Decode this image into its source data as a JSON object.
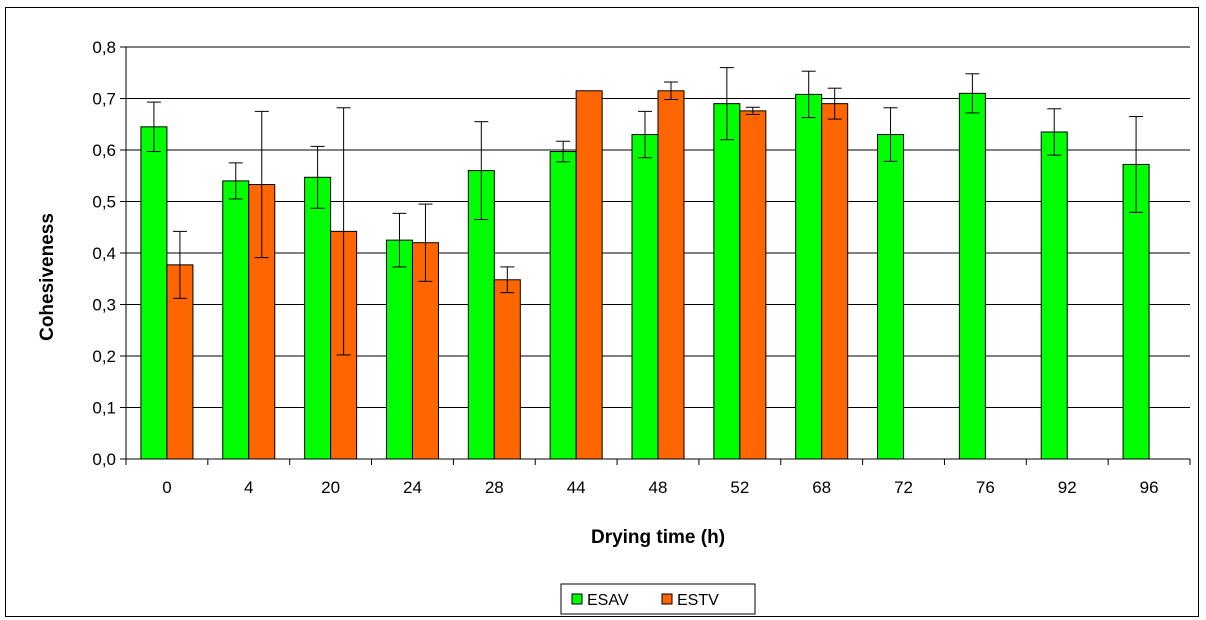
{
  "chart_data": {
    "type": "bar",
    "title": "",
    "xlabel": "Drying time (h)",
    "ylabel": "Cohesiveness",
    "categories": [
      "0",
      "4",
      "20",
      "24",
      "28",
      "44",
      "48",
      "52",
      "68",
      "72",
      "76",
      "92",
      "96"
    ],
    "ylim": [
      0,
      0.8
    ],
    "yticks": [
      0.0,
      0.1,
      0.2,
      0.3,
      0.4,
      0.5,
      0.6,
      0.7,
      0.8
    ],
    "ytick_labels": [
      "0,0",
      "0,1",
      "0,2",
      "0,3",
      "0,4",
      "0,5",
      "0,6",
      "0,7",
      "0,8"
    ],
    "grid": "horizontal",
    "legend_position": "bottom",
    "series": [
      {
        "name": "ESAV",
        "color": "#00ff00",
        "values": [
          0.645,
          0.54,
          0.547,
          0.425,
          0.56,
          0.597,
          0.63,
          0.69,
          0.708,
          0.63,
          0.71,
          0.635,
          0.572
        ],
        "errors": [
          0.048,
          0.035,
          0.06,
          0.052,
          0.095,
          0.02,
          0.045,
          0.07,
          0.045,
          0.052,
          0.038,
          0.045,
          0.093
        ]
      },
      {
        "name": "ESTV",
        "color": "#ff6600",
        "values": [
          0.377,
          0.533,
          0.442,
          0.42,
          0.348,
          0.715,
          0.715,
          0.676,
          0.69,
          null,
          null,
          null,
          null
        ],
        "errors": [
          0.065,
          0.142,
          0.24,
          0.075,
          0.025,
          0.0,
          0.017,
          0.007,
          0.03,
          null,
          null,
          null,
          null
        ]
      }
    ]
  }
}
